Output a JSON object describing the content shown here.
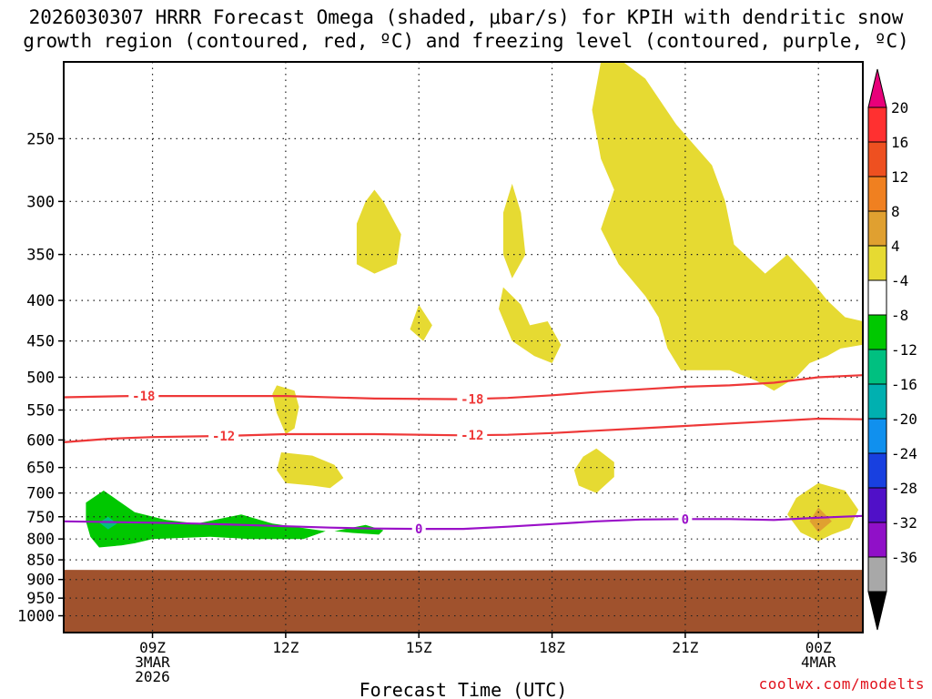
{
  "title_line1": "2026030307 HRRR Forecast Omega (shaded, μbar/s) for KPIH with dendritic snow",
  "title_line2": "growth region (contoured, red, ºC) and freezing level (contoured, purple, ºC)",
  "footer_credit": "coolwx.com/modelts",
  "chart_data": {
    "type": "time-height cross-section",
    "xlabel": "Forecast Time (UTC)",
    "x_range_hours_utc": [
      7.0,
      25.0
    ],
    "x_ticks": [
      {
        "hour": 9,
        "lines": [
          "09Z",
          "3MAR",
          "2026"
        ]
      },
      {
        "hour": 12,
        "lines": [
          "12Z"
        ]
      },
      {
        "hour": 15,
        "lines": [
          "15Z"
        ]
      },
      {
        "hour": 18,
        "lines": [
          "18Z"
        ]
      },
      {
        "hour": 21,
        "lines": [
          "21Z"
        ]
      },
      {
        "hour": 24,
        "lines": [
          "00Z",
          "4MAR"
        ]
      }
    ],
    "y_axis": {
      "scale": "log-pressure",
      "range_hpa": [
        1050,
        200
      ],
      "ticks": [
        250,
        300,
        350,
        400,
        450,
        500,
        550,
        600,
        650,
        700,
        750,
        800,
        850,
        900,
        950,
        1000
      ],
      "grid": "dotted"
    },
    "colorbar": {
      "units": "μbar/s",
      "labels": [
        "20",
        "16",
        "12",
        "8",
        "4",
        "-4",
        "-8",
        "-12",
        "-16",
        "-20",
        "-24",
        "-28",
        "-32",
        "-36"
      ],
      "colors": [
        "#e8007a",
        "#ff3030",
        "#ee5020",
        "#f08020",
        "#e0a030",
        "#e6da32",
        "#ffffff",
        "#00c800",
        "#00c080",
        "#00b0b0",
        "#1090ee",
        "#1840e0",
        "#5010c8",
        "#9010c8",
        "#a8a8a8",
        "#000000"
      ]
    },
    "ground_color": "#a0522d",
    "ground_top_hpa": [
      {
        "hour": 7.0,
        "p": 875
      },
      {
        "hour": 11.8,
        "p": 876
      },
      {
        "hour": 13.0,
        "p": 877
      },
      {
        "hour": 25.0,
        "p": 875
      }
    ],
    "contours": [
      {
        "level": -18,
        "color": "#ee3838",
        "label": "-18",
        "label_hours": [
          8.8,
          16.2
        ],
        "points": [
          [
            7.0,
            530
          ],
          [
            8.5,
            528
          ],
          [
            10.0,
            528
          ],
          [
            12.0,
            528
          ],
          [
            14.0,
            532
          ],
          [
            16.0,
            533
          ],
          [
            17.0,
            531
          ],
          [
            18.0,
            527
          ],
          [
            19.0,
            522
          ],
          [
            20.0,
            518
          ],
          [
            21.0,
            514
          ],
          [
            22.0,
            512
          ],
          [
            23.0,
            508
          ],
          [
            24.0,
            500
          ],
          [
            25.0,
            497
          ]
        ]
      },
      {
        "level": -12,
        "color": "#ee3838",
        "label": "-12",
        "label_hours": [
          10.6,
          16.2
        ],
        "points": [
          [
            7.0,
            604
          ],
          [
            8.0,
            598
          ],
          [
            9.0,
            595
          ],
          [
            10.6,
            593
          ],
          [
            12.0,
            590
          ],
          [
            14.0,
            590
          ],
          [
            16.0,
            592
          ],
          [
            17.0,
            591
          ],
          [
            18.0,
            588
          ],
          [
            19.0,
            584
          ],
          [
            20.0,
            580
          ],
          [
            21.0,
            576
          ],
          [
            22.0,
            572
          ],
          [
            23.0,
            568
          ],
          [
            24.0,
            564
          ],
          [
            25.0,
            565
          ]
        ]
      },
      {
        "level": 0,
        "color": "#9a10c8",
        "label": "0",
        "label_hours": [
          15.0,
          21.0
        ],
        "points": [
          [
            7.0,
            760
          ],
          [
            9.0,
            763
          ],
          [
            10.0,
            765
          ],
          [
            11.0,
            768
          ],
          [
            12.0,
            771
          ],
          [
            13.0,
            774
          ],
          [
            14.0,
            776
          ],
          [
            15.0,
            777
          ],
          [
            16.0,
            777
          ],
          [
            17.0,
            772
          ],
          [
            18.0,
            766
          ],
          [
            19.0,
            760
          ],
          [
            20.0,
            756
          ],
          [
            21.0,
            755
          ],
          [
            22.0,
            755
          ],
          [
            23.0,
            757
          ],
          [
            24.0,
            752
          ],
          [
            25.0,
            748
          ]
        ]
      }
    ],
    "shaded_regions": [
      {
        "value_range": "4 to 8",
        "color": "#e6da32",
        "points": [
          [
            19.1,
            200
          ],
          [
            19.6,
            200
          ],
          [
            20.1,
            210
          ],
          [
            20.8,
            240
          ],
          [
            21.6,
            270
          ],
          [
            21.9,
            300
          ],
          [
            22.1,
            340
          ],
          [
            22.8,
            370
          ],
          [
            23.3,
            350
          ],
          [
            23.8,
            375
          ],
          [
            24.2,
            400
          ],
          [
            24.6,
            420
          ],
          [
            25.0,
            425
          ],
          [
            25.0,
            455
          ],
          [
            24.5,
            460
          ],
          [
            24.2,
            470
          ],
          [
            23.8,
            480
          ],
          [
            23.5,
            500
          ],
          [
            23.0,
            520
          ],
          [
            22.6,
            505
          ],
          [
            22.0,
            490
          ],
          [
            20.9,
            490
          ],
          [
            20.6,
            460
          ],
          [
            20.4,
            420
          ],
          [
            20.1,
            395
          ],
          [
            19.5,
            360
          ],
          [
            19.1,
            325
          ],
          [
            19.4,
            290
          ],
          [
            19.1,
            265
          ],
          [
            18.9,
            230
          ]
        ]
      },
      {
        "value_range": "4 to 8",
        "color": "#e6da32",
        "points": [
          [
            14.0,
            290
          ],
          [
            14.2,
            300
          ],
          [
            14.6,
            330
          ],
          [
            14.5,
            360
          ],
          [
            14.0,
            370
          ],
          [
            13.6,
            360
          ],
          [
            13.6,
            320
          ],
          [
            13.8,
            300
          ]
        ]
      },
      {
        "value_range": "4 to 8",
        "color": "#e6da32",
        "points": [
          [
            17.1,
            285
          ],
          [
            17.3,
            310
          ],
          [
            17.4,
            350
          ],
          [
            17.1,
            375
          ],
          [
            16.9,
            350
          ],
          [
            16.9,
            310
          ]
        ]
      },
      {
        "value_range": "4 to 8",
        "color": "#e6da32",
        "points": [
          [
            16.9,
            385
          ],
          [
            17.3,
            405
          ],
          [
            17.5,
            430
          ],
          [
            17.9,
            425
          ],
          [
            18.2,
            455
          ],
          [
            18.0,
            480
          ],
          [
            17.6,
            470
          ],
          [
            17.1,
            450
          ],
          [
            16.8,
            410
          ]
        ]
      },
      {
        "value_range": "4 to 8",
        "color": "#e6da32",
        "points": [
          [
            15.0,
            405
          ],
          [
            15.3,
            430
          ],
          [
            15.1,
            450
          ],
          [
            14.8,
            435
          ]
        ]
      },
      {
        "value_range": "4 to 8",
        "color": "#e6da32",
        "points": [
          [
            11.8,
            512
          ],
          [
            12.2,
            520
          ],
          [
            12.3,
            545
          ],
          [
            12.2,
            580
          ],
          [
            12.0,
            590
          ],
          [
            11.8,
            555
          ],
          [
            11.7,
            525
          ]
        ]
      },
      {
        "value_range": "4 to 8",
        "color": "#e6da32",
        "points": [
          [
            11.9,
            622
          ],
          [
            12.6,
            628
          ],
          [
            13.1,
            645
          ],
          [
            13.3,
            670
          ],
          [
            13.0,
            690
          ],
          [
            12.6,
            685
          ],
          [
            12.0,
            680
          ],
          [
            11.8,
            655
          ]
        ]
      },
      {
        "value_range": "4 to 8",
        "color": "#e6da32",
        "points": [
          [
            19.0,
            615
          ],
          [
            19.4,
            640
          ],
          [
            19.4,
            668
          ],
          [
            19.0,
            700
          ],
          [
            18.6,
            685
          ],
          [
            18.5,
            655
          ],
          [
            18.7,
            630
          ]
        ]
      },
      {
        "value_range": "4 to 8",
        "color": "#e6da32",
        "points": [
          [
            24.0,
            680
          ],
          [
            24.6,
            695
          ],
          [
            24.9,
            735
          ],
          [
            24.7,
            775
          ],
          [
            24.3,
            790
          ],
          [
            24.0,
            805
          ],
          [
            23.6,
            785
          ],
          [
            23.3,
            745
          ],
          [
            23.5,
            710
          ]
        ]
      },
      {
        "value_range": "8 to 12",
        "color": "#e0a030",
        "points": [
          [
            24.0,
            730
          ],
          [
            24.3,
            760
          ],
          [
            24.0,
            785
          ],
          [
            23.8,
            760
          ]
        ]
      },
      {
        "value_range": "-4 to -8",
        "color": "#00c800",
        "points": [
          [
            7.5,
            720
          ],
          [
            7.9,
            695
          ],
          [
            8.6,
            740
          ],
          [
            9.3,
            757
          ],
          [
            10.0,
            765
          ],
          [
            11.0,
            745
          ],
          [
            11.7,
            765
          ],
          [
            12.9,
            782
          ],
          [
            12.4,
            800
          ],
          [
            11.2,
            800
          ],
          [
            10.3,
            795
          ],
          [
            9.0,
            800
          ],
          [
            8.6,
            810
          ],
          [
            8.3,
            815
          ],
          [
            7.8,
            820
          ],
          [
            7.6,
            795
          ],
          [
            7.5,
            760
          ]
        ]
      },
      {
        "value_range": "-4 to -8",
        "color": "#00c800",
        "points": [
          [
            13.1,
            782
          ],
          [
            13.8,
            768
          ],
          [
            14.2,
            780
          ],
          [
            14.1,
            790
          ],
          [
            13.5,
            786
          ]
        ]
      },
      {
        "value_range": "-8 to -12",
        "color": "#00c080",
        "points": [
          [
            8.0,
            750
          ],
          [
            8.2,
            765
          ],
          [
            8.0,
            778
          ],
          [
            7.8,
            763
          ]
        ]
      }
    ]
  }
}
